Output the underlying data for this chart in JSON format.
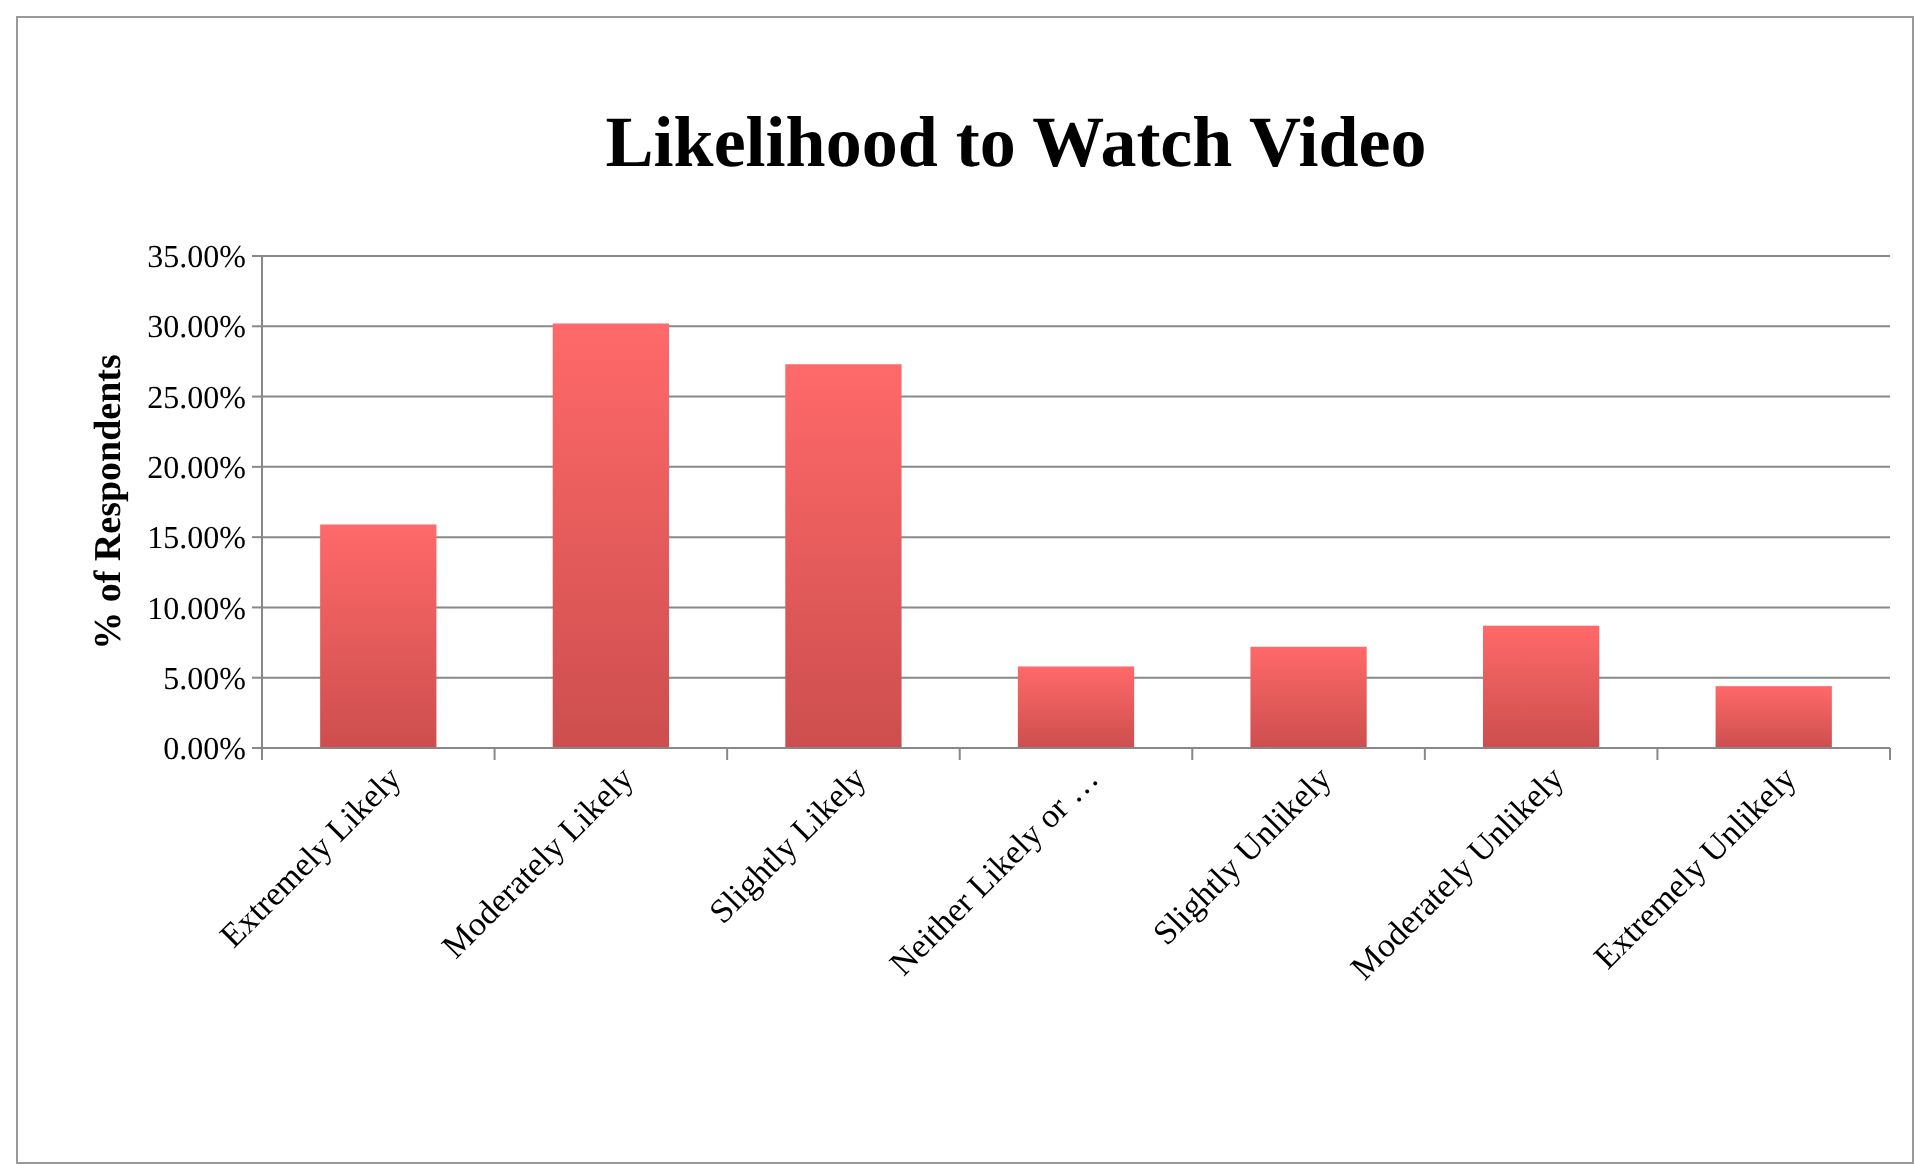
{
  "chart_data": {
    "type": "bar",
    "title": "Likelihood to Watch Video",
    "ylabel": "% of Respondents",
    "categories": [
      "Extremely Likely",
      "Moderately Likely",
      "Slightly Likely",
      "Neither Likely or …",
      "Slightly Unlikely",
      "Moderately Unlikely",
      "Extremely Unlikely"
    ],
    "values": [
      15.9,
      30.2,
      27.3,
      5.8,
      7.2,
      8.7,
      4.4
    ],
    "color": "#e05555",
    "ylim": [
      0,
      35
    ],
    "yticks": [
      {
        "value": 0,
        "label": "0.00%"
      },
      {
        "value": 5,
        "label": "5.00%"
      },
      {
        "value": 10,
        "label": "10.00%"
      },
      {
        "value": 15,
        "label": "15.00%"
      },
      {
        "value": 20,
        "label": "20.00%"
      },
      {
        "value": 25,
        "label": "25.00%"
      },
      {
        "value": 30,
        "label": "30.00%"
      },
      {
        "value": 35,
        "label": "35.00%"
      }
    ],
    "grid": "y"
  }
}
